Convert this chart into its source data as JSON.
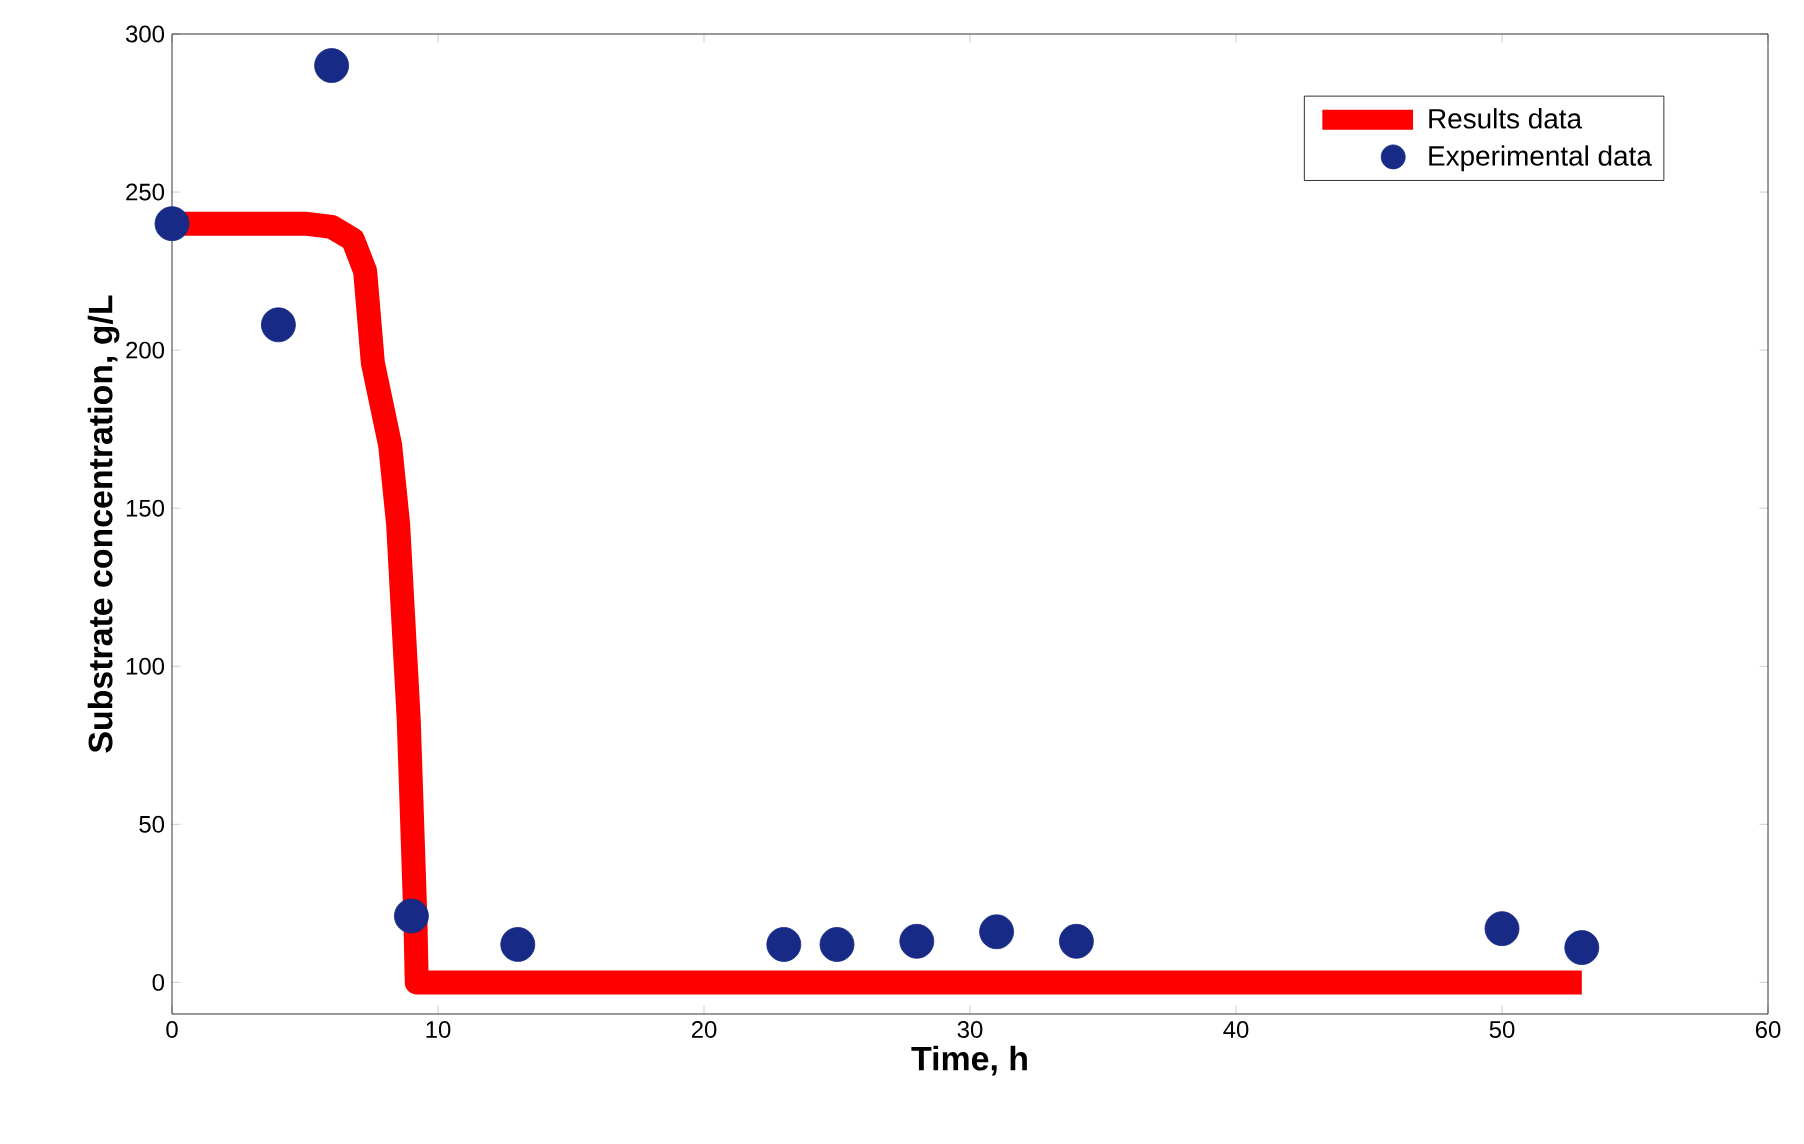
{
  "chart_data": {
    "type": "line",
    "xlabel": "Time, h",
    "ylabel": "Substrate concentration, g/L",
    "xlim": [
      0,
      60
    ],
    "ylim": [
      -10,
      300
    ],
    "xticks": [
      0,
      10,
      20,
      30,
      40,
      50,
      60
    ],
    "yticks": [
      0,
      50,
      100,
      150,
      200,
      250,
      300
    ],
    "legend": "top right",
    "series": [
      {
        "name": "Results data",
        "color": "#ff0000",
        "line_style": "solid",
        "marker": "none",
        "x": [
          0,
          5,
          6,
          6.8,
          7.26,
          7.55,
          8.2,
          8.5,
          8.9,
          9.15,
          9.2,
          53
        ],
        "values": [
          240,
          240,
          239,
          235,
          225,
          196,
          170,
          145,
          83,
          20,
          0,
          0
        ]
      },
      {
        "name": "Experimental data",
        "type": "scatter",
        "color": "#172a85",
        "marker": "circle",
        "x": [
          0,
          4,
          6,
          9,
          13,
          23,
          25,
          28,
          31,
          34,
          50,
          53
        ],
        "values": [
          240,
          208,
          290,
          21,
          12,
          12,
          12,
          13,
          16,
          13,
          17,
          11
        ]
      }
    ]
  }
}
